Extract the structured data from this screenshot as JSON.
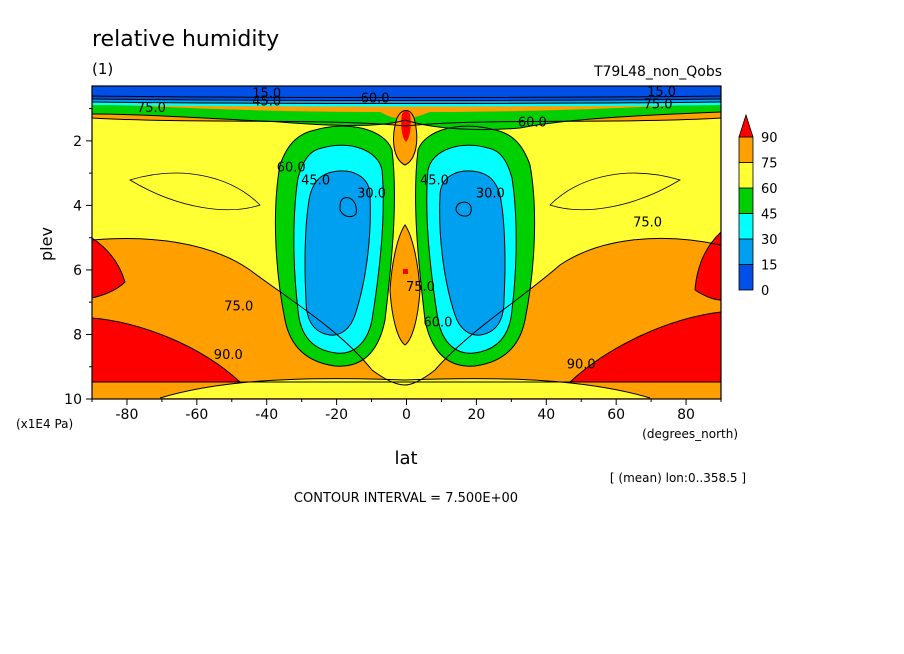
{
  "header": {
    "title": "relative humidity",
    "panel": "(1)",
    "dataset": "T79L48_non_Qobs"
  },
  "footer": {
    "contour_interval": "CONTOUR INTERVAL = 7.500E+00",
    "averaging": "[ (mean) lon:0..358.5 ]"
  },
  "colors": {
    "c0": "#0050e8",
    "c1": "#00a0f0",
    "c2": "#00ffff",
    "c3": "#00d000",
    "c4": "#ffff33",
    "c5": "#ffa000",
    "c6": "#ff0000"
  },
  "chart_data": {
    "type": "contour",
    "title": "relative humidity",
    "xlabel": "lat",
    "x_units": "(degrees_north)",
    "ylabel": "plev",
    "y_units": "(x1E4 Pa)",
    "xlim": [
      -90,
      90
    ],
    "ylim": [
      10,
      0.3
    ],
    "x_ticks": [
      {
        "value": -80,
        "label": "-80"
      },
      {
        "value": -60,
        "label": "-60"
      },
      {
        "value": -40,
        "label": "-40"
      },
      {
        "value": -20,
        "label": "-20"
      },
      {
        "value": 0,
        "label": "0"
      },
      {
        "value": 20,
        "label": "20"
      },
      {
        "value": 40,
        "label": "40"
      },
      {
        "value": 60,
        "label": "60"
      },
      {
        "value": 80,
        "label": "80"
      }
    ],
    "y_ticks": [
      {
        "value": 2,
        "label": "2"
      },
      {
        "value": 4,
        "label": "4"
      },
      {
        "value": 6,
        "label": "6"
      },
      {
        "value": 8,
        "label": "8"
      },
      {
        "value": 10,
        "label": "10"
      }
    ],
    "colorbar": {
      "levels": [
        "0",
        "15",
        "30",
        "45",
        "60",
        "75",
        "90"
      ],
      "colors": [
        "#0050e8",
        "#00a0f0",
        "#00ffff",
        "#00d000",
        "#ffff33",
        "#ffa000",
        "#ff0000"
      ]
    },
    "contour_labels": [
      {
        "text": "15.0",
        "lat": -40,
        "plev": 0.5
      },
      {
        "text": "45.0",
        "lat": -40,
        "plev": 0.75
      },
      {
        "text": "60.0",
        "lat": -9,
        "plev": 0.65
      },
      {
        "text": "75.0",
        "lat": -73,
        "plev": 0.95
      },
      {
        "text": "60.0",
        "lat": -33,
        "plev": 2.8
      },
      {
        "text": "45.0",
        "lat": -26,
        "plev": 3.2
      },
      {
        "text": "30.0",
        "lat": -10,
        "plev": 3.6
      },
      {
        "text": "45.0",
        "lat": 8,
        "plev": 3.2
      },
      {
        "text": "30.0",
        "lat": 24,
        "plev": 3.6
      },
      {
        "text": "60.0",
        "lat": 36,
        "plev": 1.4
      },
      {
        "text": "15.0",
        "lat": 73,
        "plev": 0.45
      },
      {
        "text": "75.0",
        "lat": 72,
        "plev": 0.85
      },
      {
        "text": "75.0",
        "lat": 69,
        "plev": 4.5
      },
      {
        "text": "75.0",
        "lat": -48,
        "plev": 7.1
      },
      {
        "text": "75.0",
        "lat": 4,
        "plev": 6.5
      },
      {
        "text": "60.0",
        "lat": 9,
        "plev": 7.6
      },
      {
        "text": "90.0",
        "lat": -51,
        "plev": 8.6
      },
      {
        "text": "90.0",
        "lat": 50,
        "plev": 8.9
      }
    ]
  }
}
